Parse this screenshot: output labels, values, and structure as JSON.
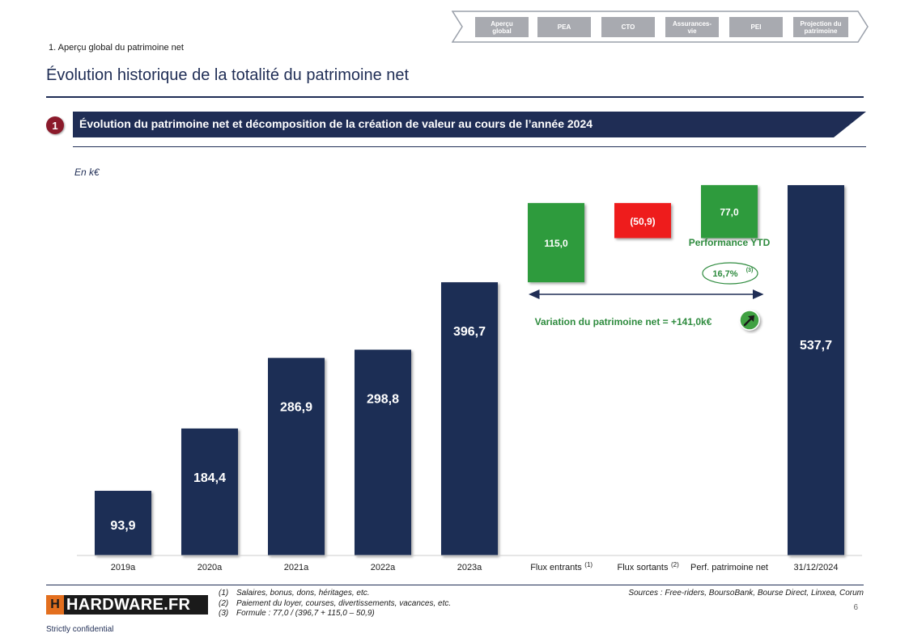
{
  "nav": {
    "tabs": [
      {
        "label": "Aperçu\nglobal",
        "active": true
      },
      {
        "label": "PEA",
        "active": false
      },
      {
        "label": "CTO",
        "active": false
      },
      {
        "label": "Assurances-\nvie",
        "active": false
      },
      {
        "label": "PEI",
        "active": false
      },
      {
        "label": "Projection du\npatrimoine",
        "active": false
      }
    ]
  },
  "section_label": "1. Aperçu global du patrimoine net",
  "page_title": "Évolution historique de la totalité du patrimoine net",
  "banner": {
    "number": "1",
    "text": "Évolution du patrimoine net et décomposition de la création de valeur au cours de l’année 2024"
  },
  "unit_label": "En k€",
  "chart_data": {
    "type": "bar",
    "categories": [
      "2019a",
      "2020a",
      "2021a",
      "2022a",
      "2023a",
      "Flux entrants",
      "Flux sortants",
      "Perf. patrimoine net",
      "31/12/2024"
    ],
    "category_superscripts": [
      "",
      "",
      "",
      "",
      "",
      "(1)",
      "(2)",
      "",
      ""
    ],
    "values": [
      93.9,
      184.4,
      286.9,
      298.8,
      396.7,
      115.0,
      -50.9,
      77.0,
      537.7
    ],
    "value_labels": [
      "93,9",
      "184,4",
      "286,9",
      "298,8",
      "396,7",
      "115,0",
      "(50,9)",
      "77,0",
      "537,7"
    ],
    "bar_kind": [
      "total",
      "total",
      "total",
      "total",
      "total",
      "increase",
      "decrease",
      "increase",
      "total"
    ],
    "ylim": [
      0,
      560
    ],
    "colors": {
      "total": "#1f2d55",
      "increase": "#2e9b3e",
      "decrease": "#ee1c1c"
    },
    "annotations": {
      "performance_label": "Performance YTD",
      "performance_pct": "16,7%",
      "performance_pct_note": "(3)",
      "variation_text": "Variation du patrimoine net = +141,0k€"
    }
  },
  "footnotes": [
    {
      "num": "(1)",
      "text": "Salaires, bonus, dons, héritages, etc."
    },
    {
      "num": "(2)",
      "text": "Paiement du loyer, courses, divertissements, vacances, etc."
    },
    {
      "num": "(3)",
      "text": "Formule : 77,0 / (396,7 + 115,0 – 50,9)"
    }
  ],
  "sources": "Sources : Free-riders, BoursoBank, Bourse Direct, Linxea, Corum",
  "page_number": "6",
  "logo": {
    "mark": "H",
    "text": "HARDWARE.FR"
  },
  "confidential": "Strictly confidential"
}
